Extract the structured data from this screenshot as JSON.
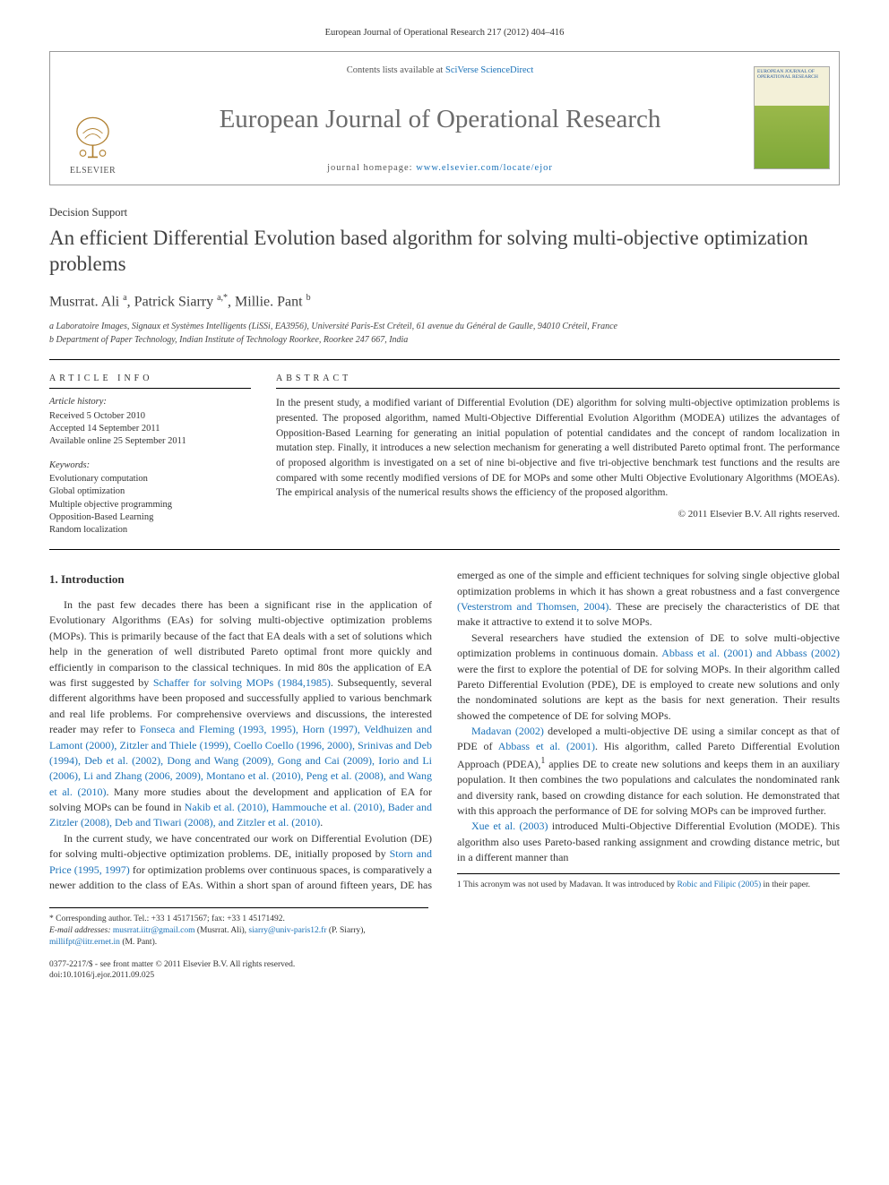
{
  "header": {
    "journal_citation": "European Journal of Operational Research 217 (2012) 404–416",
    "contents_prefix": "Contents lists available at ",
    "contents_link": "SciVerse ScienceDirect",
    "journal_title": "European Journal of Operational Research",
    "homepage_prefix": "journal homepage: ",
    "homepage_url": "www.elsevier.com/locate/ejor",
    "publisher": "ELSEVIER",
    "cover_title": "EUROPEAN JOURNAL OF OPERATIONAL RESEARCH"
  },
  "article": {
    "section": "Decision Support",
    "title": "An efficient Differential Evolution based algorithm for solving multi-objective optimization problems",
    "authors_html": "Musrrat. Ali <sup>a</sup>, Patrick Siarry <sup>a,*</sup>, Millie. Pant <sup>b</sup>",
    "affiliations": [
      "a Laboratoire Images, Signaux et Systèmes Intelligents (LiSSi, EA3956), Université Paris-Est Créteil, 61 avenue du Général de Gaulle, 94010 Créteil, France",
      "b Department of Paper Technology, Indian Institute of Technology Roorkee, Roorkee 247 667, India"
    ]
  },
  "info": {
    "heading": "article info",
    "history_label": "Article history:",
    "history": [
      "Received 5 October 2010",
      "Accepted 14 September 2011",
      "Available online 25 September 2011"
    ],
    "keywords_label": "Keywords:",
    "keywords": [
      "Evolutionary computation",
      "Global optimization",
      "Multiple objective programming",
      "Opposition-Based Learning",
      "Random localization"
    ]
  },
  "abstract": {
    "heading": "abstract",
    "text": "In the present study, a modified variant of Differential Evolution (DE) algorithm for solving multi-objective optimization problems is presented. The proposed algorithm, named Multi-Objective Differential Evolution Algorithm (MODEA) utilizes the advantages of Opposition-Based Learning for generating an initial population of potential candidates and the concept of random localization in mutation step. Finally, it introduces a new selection mechanism for generating a well distributed Pareto optimal front. The performance of proposed algorithm is investigated on a set of nine bi-objective and five tri-objective benchmark test functions and the results are compared with some recently modified versions of DE for MOPs and some other Multi Objective Evolutionary Algorithms (MOEAs). The empirical analysis of the numerical results shows the efficiency of the proposed algorithm.",
    "copyright": "© 2011 Elsevier B.V. All rights reserved."
  },
  "body": {
    "section_heading": "1. Introduction",
    "p1a": "In the past few decades there has been a significant rise in the application of Evolutionary Algorithms (EAs) for solving multi-objective optimization problems (MOPs). This is primarily because of the fact that EA deals with a set of solutions which help in the generation of well distributed Pareto optimal front more quickly and efficiently in comparison to the classical techniques. In mid 80s the application of EA was first suggested by ",
    "p1_link1": "Schaffer for solving MOPs (1984,1985)",
    "p1b": ". Subsequently, several different algorithms have been proposed and successfully applied to various benchmark and real life problems. For comprehensive overviews and discussions, the interested reader may refer to ",
    "p1_link2": "Fonseca and Fleming (1993, 1995), Horn (1997), Veldhuizen and Lamont (2000), Zitzler and Thiele (1999), Coello Coello (1996, 2000), Srinivas and Deb (1994), Deb et al. (2002), Dong and Wang (2009), Gong and Cai (2009), Iorio and Li (2006), Li and Zhang (2006, 2009), Montano et al. (2010), Peng et al. (2008), and Wang et al. (2010)",
    "p1c": ". Many more studies about the development and application of EA for solving MOPs can be found in ",
    "p1_link3": "Nakib et al. (2010), Hammouche et al. (2010), Bader and Zitzler (2008), Deb and Tiwari (2008), and Zitzler et al. (2010)",
    "p1d": ".",
    "p2a": "In the current study, we have concentrated our work on Differential Evolution (DE) for solving multi-objective optimization problems. DE, initially proposed by ",
    "p2_link1": "Storn and Price (1995, 1997)",
    "p2b": " for optimization problems over continuous spaces, is comparatively a ",
    "p2c": "newer addition to the class of EAs. Within a short span of around fifteen years, DE has emerged as one of the simple and efficient techniques for solving single objective global optimization problems in which it has shown a great robustness and a fast convergence ",
    "p2_link2": "(Vesterstrom and Thomsen, 2004)",
    "p2d": ". These are precisely the characteristics of DE that make it attractive to extend it to solve MOPs.",
    "p3a": "Several researchers have studied the extension of DE to solve multi-objective optimization problems in continuous domain. ",
    "p3_link1": "Abbass et al. (2001) and Abbass (2002)",
    "p3b": " were the first to explore the potential of DE for solving MOPs. In their algorithm called Pareto Differential Evolution (PDE), DE is employed to create new solutions and only the nondominated solutions are kept as the basis for next generation. Their results showed the competence of DE for solving MOPs.",
    "p4_link1": "Madavan (2002)",
    "p4a": " developed a multi-objective DE using a similar concept as that of PDE of ",
    "p4_link2": "Abbass et al. (2001)",
    "p4b": ". His algorithm, called Pareto Differential Evolution Approach (PDEA),",
    "p4_sup": "1",
    "p4c": " applies DE to create new solutions and keeps them in an auxiliary population. It then combines the two populations and calculates the nondominated rank and diversity rank, based on crowding distance for each solution. He demonstrated that with this approach the performance of DE for solving MOPs can be improved further.",
    "p5_link1": "Xue et al. (2003)",
    "p5a": " introduced Multi-Objective Differential Evolution (MODE). This algorithm also uses Pareto-based ranking assignment and crowding distance metric, but in a different manner than"
  },
  "footnotes_left": {
    "corr": "* Corresponding author. Tel.: +33 1 45171567; fax: +33 1 45171492.",
    "email_label": "E-mail addresses: ",
    "email1": "musrrat.iitr@gmail.com",
    "email1_who": " (Musrrat. Ali), ",
    "email2": "siarry@univ-paris12.fr",
    "email2_who": " (P. Siarry), ",
    "email3": "millifpt@iitr.ernet.in",
    "email3_who": " (M. Pant)."
  },
  "footnotes_right": {
    "note1a": "1 This acronym was not used by Madavan. It was introduced by ",
    "note1_link": "Robic and Filipic (2005)",
    "note1b": " in their paper."
  },
  "footer": {
    "line1": "0377-2217/$ - see front matter © 2011 Elsevier B.V. All rights reserved.",
    "line2": "doi:10.1016/j.ejor.2011.09.025"
  },
  "colors": {
    "link": "#1b72b8",
    "text": "#333333",
    "title_gray": "#6b6b6b",
    "rule": "#000000"
  }
}
